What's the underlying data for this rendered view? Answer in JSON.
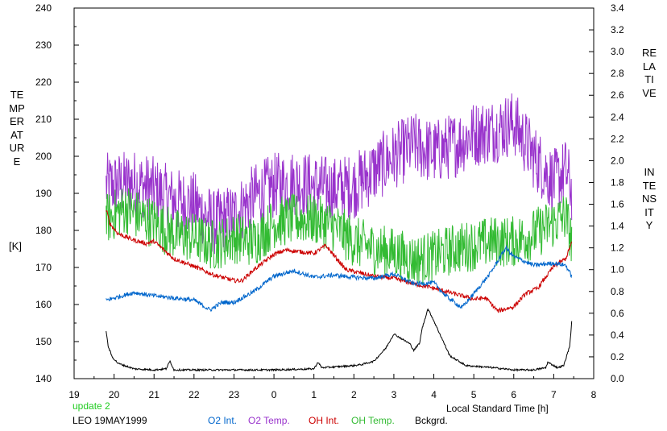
{
  "chart_data": {
    "type": "line",
    "left_axis": {
      "label_lines": [
        "TEMPERATURE",
        "[K]"
      ],
      "min": 140,
      "max": 240,
      "step": 10,
      "ticks": [
        "140",
        "150",
        "160",
        "170",
        "180",
        "190",
        "200",
        "210",
        "220",
        "230",
        "240"
      ]
    },
    "right_axis": {
      "label_lines": [
        "RELATIVE",
        "INTENSITY"
      ],
      "min": 0.0,
      "max": 3.4,
      "step": 0.2,
      "ticks": [
        "0.0",
        "0.2",
        "0.4",
        "0.6",
        "0.8",
        "1.0",
        "1.2",
        "1.4",
        "1.6",
        "1.8",
        "2.0",
        "2.2",
        "2.4",
        "2.6",
        "2.8",
        "3.0",
        "3.2",
        "3.4"
      ]
    },
    "x_axis": {
      "label": "Local Standard Time [h]",
      "min": 19,
      "max": 32,
      "ticks": [
        "19",
        "20",
        "21",
        "22",
        "23",
        "0",
        "1",
        "2",
        "3",
        "4",
        "5",
        "6",
        "7",
        "8"
      ]
    },
    "grid": false,
    "annotations": {
      "update": "update 2",
      "station": "LEO 19MAY1999"
    },
    "legend": [
      {
        "name": "O2 Int.",
        "color": "#0066cc"
      },
      {
        "name": "O2 Temp.",
        "color": "#9933cc"
      },
      {
        "name": "OH Int.",
        "color": "#cc0000"
      },
      {
        "name": "OH Temp.",
        "color": "#33bb33"
      },
      {
        "name": "Bckgrd.",
        "color": "#000000"
      }
    ],
    "series": [
      {
        "name": "O2 Temp.",
        "axis": "left",
        "color": "#9933cc",
        "noise": 9,
        "x": [
          19.8,
          20.5,
          21.0,
          21.5,
          22.0,
          22.5,
          23.0,
          23.5,
          24.0,
          24.5,
          25.0,
          25.5,
          26.0,
          26.5,
          27.0,
          27.5,
          28.0,
          28.5,
          29.0,
          29.5,
          30.0,
          30.5,
          31.0,
          31.3,
          31.45
        ],
        "y": [
          192,
          193,
          191,
          188,
          187,
          182,
          184,
          189,
          192,
          193,
          192,
          191,
          192,
          196,
          200,
          203,
          201,
          203,
          206,
          207,
          209,
          200,
          193,
          196,
          191
        ]
      },
      {
        "name": "OH Temp.",
        "axis": "left",
        "color": "#33bb33",
        "noise": 7,
        "x": [
          19.8,
          20.3,
          20.6,
          21.0,
          21.5,
          22.0,
          22.5,
          23.0,
          23.5,
          24.0,
          24.5,
          25.0,
          25.5,
          26.0,
          26.5,
          27.0,
          27.5,
          28.0,
          28.5,
          29.0,
          29.5,
          30.0,
          30.5,
          31.0,
          31.3,
          31.45
        ],
        "y": [
          183,
          186,
          184,
          182,
          179,
          178,
          176,
          178,
          177,
          182,
          183,
          183,
          181,
          177,
          175,
          174,
          172,
          173,
          175,
          176,
          177,
          177,
          179,
          182,
          184,
          177
        ]
      },
      {
        "name": "OH Int.",
        "axis": "right",
        "color": "#cc0000",
        "noise": 0.02,
        "x": [
          19.8,
          19.9,
          20.1,
          20.5,
          20.8,
          21.0,
          21.5,
          22.0,
          22.5,
          23.0,
          23.2,
          23.5,
          24.0,
          24.3,
          25.0,
          25.3,
          25.8,
          26.5,
          27.0,
          27.5,
          28.0,
          28.5,
          29.0,
          29.3,
          29.6,
          30.0,
          30.3,
          30.6,
          31.0,
          31.3,
          31.45
        ],
        "y": [
          1.55,
          1.42,
          1.33,
          1.27,
          1.24,
          1.26,
          1.1,
          1.03,
          0.95,
          0.9,
          0.9,
          1.0,
          1.14,
          1.18,
          1.15,
          1.22,
          1.0,
          0.94,
          0.92,
          0.87,
          0.83,
          0.78,
          0.73,
          0.74,
          0.62,
          0.66,
          0.78,
          0.83,
          1.03,
          1.1,
          1.25
        ]
      },
      {
        "name": "O2 Int.",
        "axis": "right",
        "color": "#0066cc",
        "noise": 0.02,
        "x": [
          19.8,
          20.5,
          21.0,
          21.5,
          22.0,
          22.4,
          22.7,
          23.0,
          23.5,
          24.0,
          24.5,
          25.0,
          25.5,
          26.0,
          26.5,
          27.0,
          27.5,
          28.0,
          28.3,
          28.7,
          29.0,
          29.4,
          29.8,
          30.0,
          30.5,
          31.0,
          31.3,
          31.45
        ],
        "y": [
          0.72,
          0.79,
          0.76,
          0.74,
          0.72,
          0.63,
          0.7,
          0.7,
          0.8,
          0.94,
          0.99,
          0.93,
          0.95,
          0.93,
          0.92,
          0.96,
          0.87,
          0.88,
          0.76,
          0.65,
          0.78,
          0.96,
          1.2,
          1.12,
          1.04,
          1.06,
          1.04,
          0.94
        ]
      },
      {
        "name": "Bckgrd.",
        "axis": "right",
        "color": "#000000",
        "noise": 0.008,
        "x": [
          19.8,
          19.85,
          19.95,
          20.1,
          20.5,
          21.0,
          21.3,
          21.4,
          21.5,
          22.0,
          23.0,
          24.0,
          25.0,
          25.1,
          25.2,
          26.0,
          26.2,
          26.5,
          26.8,
          27.0,
          27.4,
          27.5,
          27.65,
          27.7,
          27.85,
          27.95,
          28.15,
          28.4,
          28.8,
          29.5,
          30.0,
          30.5,
          30.8,
          30.85,
          31.1,
          31.25,
          31.4,
          31.45
        ],
        "y": [
          0.44,
          0.3,
          0.2,
          0.14,
          0.09,
          0.08,
          0.09,
          0.16,
          0.08,
          0.08,
          0.08,
          0.08,
          0.09,
          0.15,
          0.1,
          0.12,
          0.13,
          0.16,
          0.28,
          0.41,
          0.32,
          0.26,
          0.33,
          0.45,
          0.64,
          0.57,
          0.41,
          0.21,
          0.12,
          0.1,
          0.08,
          0.08,
          0.1,
          0.15,
          0.1,
          0.12,
          0.3,
          0.52
        ]
      }
    ]
  }
}
